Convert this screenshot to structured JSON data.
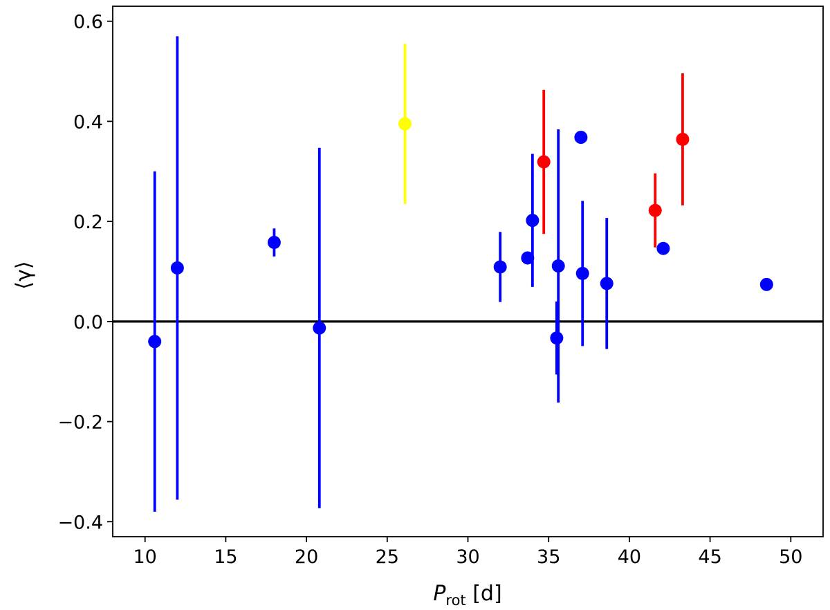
{
  "chart_data": {
    "type": "scatter",
    "title": "",
    "xlabel_main": "P",
    "xlabel_sub": "rot",
    "xlabel_unit": " [d]",
    "ylabel": "⟨γ⟩",
    "xlim": [
      8,
      52
    ],
    "ylim": [
      -0.43,
      0.63
    ],
    "xticks": [
      10,
      15,
      20,
      25,
      30,
      35,
      40,
      45,
      50
    ],
    "yticks": [
      -0.4,
      -0.2,
      0.0,
      0.2,
      0.4,
      0.6
    ],
    "ytick_labels": [
      "−0.4",
      "−0.2",
      "0.0",
      "0.2",
      "0.4",
      "0.6"
    ],
    "hline": 0.0,
    "grid": false,
    "colors": {
      "blue": "#0000ff",
      "red": "#ff0000",
      "yellow": "#ffff00",
      "black": "#000000"
    },
    "points": [
      {
        "x": 10.6,
        "y": -0.04,
        "err_low": 0.34,
        "err_high": 0.34,
        "color": "blue"
      },
      {
        "x": 12.0,
        "y": 0.107,
        "err_low": 0.463,
        "err_high": 0.463,
        "color": "blue"
      },
      {
        "x": 18.0,
        "y": 0.158,
        "err_low": 0.028,
        "err_high": 0.028,
        "color": "blue"
      },
      {
        "x": 20.8,
        "y": -0.013,
        "err_low": 0.36,
        "err_high": 0.36,
        "color": "blue"
      },
      {
        "x": 26.1,
        "y": 0.395,
        "err_low": 0.16,
        "err_high": 0.16,
        "color": "yellow"
      },
      {
        "x": 32.0,
        "y": 0.109,
        "err_low": 0.07,
        "err_high": 0.07,
        "color": "blue"
      },
      {
        "x": 33.7,
        "y": 0.127,
        "err_low": 0.0,
        "err_high": 0.0,
        "color": "blue"
      },
      {
        "x": 34.0,
        "y": 0.202,
        "err_low": 0.133,
        "err_high": 0.133,
        "color": "blue"
      },
      {
        "x": 34.7,
        "y": 0.319,
        "err_low": 0.144,
        "err_high": 0.144,
        "color": "red"
      },
      {
        "x": 35.5,
        "y": -0.033,
        "err_low": 0.073,
        "err_high": 0.073,
        "color": "blue"
      },
      {
        "x": 35.6,
        "y": 0.111,
        "err_low": 0.273,
        "err_high": 0.273,
        "color": "blue"
      },
      {
        "x": 37.0,
        "y": 0.368,
        "err_low": 0.0,
        "err_high": 0.0,
        "color": "blue"
      },
      {
        "x": 37.1,
        "y": 0.096,
        "err_low": 0.145,
        "err_high": 0.145,
        "color": "blue"
      },
      {
        "x": 38.6,
        "y": 0.076,
        "err_low": 0.131,
        "err_high": 0.131,
        "color": "blue"
      },
      {
        "x": 41.6,
        "y": 0.222,
        "err_low": 0.074,
        "err_high": 0.074,
        "color": "red"
      },
      {
        "x": 42.1,
        "y": 0.146,
        "err_low": 0.0,
        "err_high": 0.0,
        "color": "blue"
      },
      {
        "x": 43.3,
        "y": 0.364,
        "err_low": 0.132,
        "err_high": 0.132,
        "color": "red"
      },
      {
        "x": 48.5,
        "y": 0.074,
        "err_low": 0.0,
        "err_high": 0.0,
        "color": "blue"
      }
    ]
  }
}
